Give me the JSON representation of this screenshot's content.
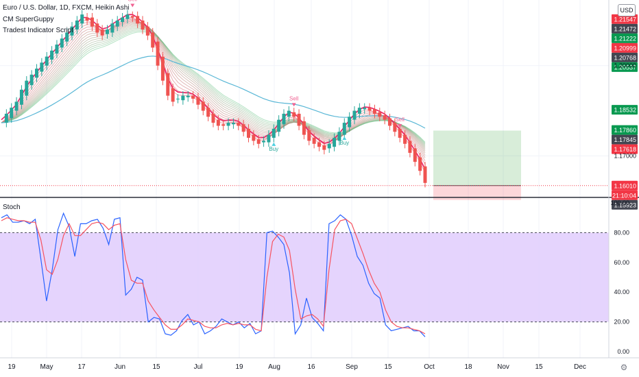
{
  "header": {
    "title": "Euro / U.S. Dollar, 1D, FXCM, Heikin Ashi",
    "indicator_1": "CM SuperGuppy",
    "indicator_2": "Tradest Indicator Script",
    "currency": "USD"
  },
  "colors": {
    "bull": "#26a69a",
    "bear": "#ef5350",
    "green_label": "#089950",
    "red_label": "#f23645",
    "dark_label": "#434651",
    "stoch_k": "#2962ff",
    "stoch_d": "#f7525f",
    "band": "#e1cdfd"
  },
  "price_axis": {
    "grid_labels": [
      "1.20000",
      "1.17000"
    ],
    "badges": [
      {
        "value": "1.21547",
        "color": "#f23645"
      },
      {
        "value": "1.21472",
        "color": "#434651"
      },
      {
        "value": "1.21222",
        "color": "#089950"
      },
      {
        "value": "1.20999",
        "color": "#f23645"
      },
      {
        "value": "1.20768",
        "color": "#434651"
      },
      {
        "value": "1.20537",
        "color": "#089950"
      },
      {
        "value": "1.18532",
        "color": "#089950"
      },
      {
        "value": "1.17860",
        "color": "#089950"
      },
      {
        "value": "1.17845",
        "color": "#434651"
      },
      {
        "value": "1.17618",
        "color": "#f23645"
      },
      {
        "value": "1.16010",
        "color": "#f23645"
      },
      {
        "value": "21:10:04",
        "color": "#f23645"
      },
      {
        "value": "1.15923",
        "color": "#434651"
      }
    ]
  },
  "signals": [
    "Sell",
    "Buy",
    "Sell",
    "Buy",
    "Sell"
  ],
  "stoch": {
    "label": "Stoch",
    "axis_labels": [
      "100.00",
      "80.00",
      "60.00",
      "40.00",
      "20.00",
      "0.00"
    ],
    "band": [
      20,
      80
    ]
  },
  "time_axis": [
    "19",
    "May",
    "17",
    "Jun",
    "15",
    "Jul",
    "19",
    "Aug",
    "16",
    "Sep",
    "15",
    "Oct",
    "18",
    "Nov",
    "15",
    "Dec"
  ],
  "chart_data": [
    {
      "type": "line",
      "title": "Euro / U.S. Dollar, 1D, FXCM, Heikin Ashi",
      "ylim": [
        1.158,
        1.22
      ],
      "series": [
        {
          "name": "Euro / U.S. Dollar",
          "values": [
            1.181,
            1.184,
            1.186,
            1.188,
            1.192,
            1.195,
            1.197,
            1.199,
            1.201,
            1.203,
            1.205,
            1.207,
            1.209,
            1.211,
            1.213,
            1.215,
            1.217,
            1.215,
            1.213,
            1.211,
            1.21,
            1.212,
            1.214,
            1.215,
            1.216,
            1.217,
            1.216,
            1.214,
            1.212,
            1.21,
            1.206,
            1.2,
            1.195,
            1.19,
            1.188,
            1.189,
            1.19,
            1.19,
            1.189,
            1.187,
            1.185,
            1.183,
            1.181,
            1.18,
            1.18,
            1.181,
            1.181,
            1.18,
            1.178,
            1.176,
            1.175,
            1.174,
            1.175,
            1.177,
            1.179,
            1.182,
            1.184,
            1.185,
            1.183,
            1.18,
            1.177,
            1.175,
            1.174,
            1.173,
            1.172,
            1.174,
            1.176,
            1.178,
            1.181,
            1.183,
            1.185,
            1.186,
            1.186,
            1.185,
            1.184,
            1.183,
            1.182,
            1.18,
            1.178,
            1.176,
            1.174,
            1.171,
            1.168,
            1.165,
            1.161
          ]
        }
      ],
      "signals": [
        {
          "type": "Sell",
          "index": 26
        },
        {
          "type": "Buy",
          "index": 54
        },
        {
          "type": "Sell",
          "index": 58
        },
        {
          "type": "Buy",
          "index": 68
        },
        {
          "type": "Sell",
          "index": 79
        }
      ]
    },
    {
      "type": "line",
      "title": "Stoch",
      "ylim": [
        0,
        100
      ],
      "series": [
        {
          "name": "%K",
          "values": [
            90,
            92,
            87,
            87,
            88,
            86,
            89,
            62,
            34,
            55,
            82,
            93,
            84,
            64,
            86,
            86,
            88,
            89,
            83,
            72,
            89,
            90,
            38,
            42,
            50,
            48,
            20,
            23,
            22,
            12,
            11,
            14,
            21,
            25,
            18,
            20,
            12,
            14,
            17,
            22,
            20,
            18,
            20,
            16,
            19,
            12,
            14,
            80,
            81,
            77,
            72,
            53,
            12,
            18,
            36,
            23,
            19,
            14,
            86,
            88,
            92,
            89,
            78,
            64,
            58,
            46,
            39,
            36,
            18,
            14,
            15,
            16,
            17,
            14,
            14,
            10
          ]
        },
        {
          "name": "%D",
          "values": [
            88,
            90,
            89,
            88,
            88,
            87,
            87,
            75,
            55,
            52,
            62,
            78,
            86,
            78,
            78,
            82,
            86,
            87,
            86,
            82,
            85,
            86,
            62,
            48,
            46,
            46,
            34,
            28,
            23,
            18,
            15,
            15,
            18,
            22,
            21,
            20,
            17,
            16,
            16,
            18,
            19,
            18,
            19,
            18,
            18,
            15,
            14,
            50,
            74,
            79,
            77,
            68,
            42,
            22,
            24,
            25,
            22,
            17,
            55,
            82,
            88,
            89,
            86,
            76,
            66,
            55,
            46,
            40,
            28,
            20,
            17,
            16,
            16,
            15,
            14,
            12
          ]
        }
      ]
    }
  ]
}
